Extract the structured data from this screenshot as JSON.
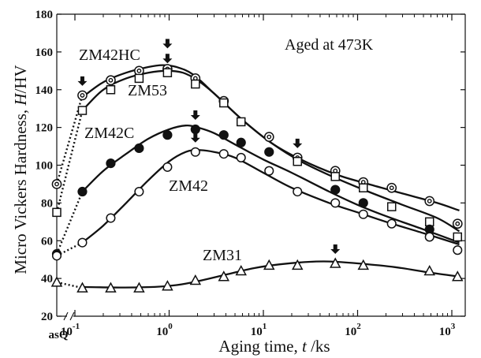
{
  "chart_data": {
    "type": "scatter",
    "title": "",
    "annotation": "Aged at 473K",
    "xlabel": "Aging time, t /ks",
    "ylabel": "Micro Vickers Hardness, H/HV",
    "xscale": "log",
    "xlim": [
      0.06,
      1500
    ],
    "ylim": [
      20,
      180
    ],
    "grid": false,
    "x_ticks": [
      {
        "value": 0.1,
        "label": "10",
        "exp": "-1"
      },
      {
        "value": 1,
        "label": "10",
        "exp": "0"
      },
      {
        "value": 10,
        "label": "10",
        "exp": "1"
      },
      {
        "value": 100,
        "label": "10",
        "exp": "2"
      },
      {
        "value": 1000,
        "label": "10",
        "exp": "3"
      }
    ],
    "x_special_label": "asQ",
    "y_ticks": [
      "20",
      "40",
      "60",
      "80",
      "100",
      "120",
      "140",
      "160",
      "180"
    ],
    "y_tick_values": [
      20,
      40,
      60,
      80,
      100,
      120,
      140,
      160,
      180
    ],
    "series": [
      {
        "name": "ZM42HC",
        "marker": "double-circle",
        "asQ": 90,
        "x": [
          0.12,
          0.24,
          0.48,
          0.96,
          1.9,
          3.8,
          11.5,
          23,
          58,
          115,
          230,
          580,
          1150
        ],
        "y": [
          137,
          145,
          150,
          151,
          146,
          134,
          115,
          104,
          97,
          91,
          88,
          81,
          69
        ],
        "curve_x": [
          0.12,
          0.2,
          0.35,
          0.6,
          0.85,
          1.2,
          1.8,
          3,
          6,
          12,
          25,
          60,
          130,
          300,
          700,
          1200
        ],
        "curve_y": [
          136,
          144,
          149,
          152,
          153,
          152,
          148,
          138,
          124,
          112,
          103,
          95,
          90,
          85,
          80,
          76
        ]
      },
      {
        "name": "ZM53",
        "marker": "open-square",
        "asQ": 75,
        "x": [
          0.12,
          0.24,
          0.48,
          0.96,
          1.9,
          3.8,
          5.8,
          23,
          58,
          115,
          230,
          580,
          1150
        ],
        "y": [
          129,
          140,
          146,
          149,
          143,
          133,
          123,
          102,
          94,
          88,
          78,
          70,
          62
        ],
        "curve_x": [
          0.12,
          0.2,
          0.35,
          0.6,
          0.95,
          1.4,
          2,
          3,
          6,
          12,
          25,
          60,
          130,
          300,
          700,
          1200
        ],
        "curve_y": [
          129,
          140,
          146,
          149,
          150,
          149,
          145,
          138,
          124,
          112,
          102,
          93,
          86,
          79,
          72,
          65
        ]
      },
      {
        "name": "ZM42C",
        "marker": "filled-circle",
        "asQ": 53,
        "x": [
          0.12,
          0.24,
          0.48,
          0.96,
          1.9,
          3.8,
          5.8,
          11.5,
          58,
          115,
          580
        ],
        "y": [
          86,
          101,
          109,
          116,
          119,
          116,
          112,
          107,
          87,
          80,
          66
        ],
        "curve_x": [
          0.12,
          0.2,
          0.35,
          0.6,
          1,
          1.5,
          2,
          3,
          5,
          10,
          20,
          50,
          100,
          200,
          500,
          1200
        ],
        "curve_y": [
          86,
          97,
          106,
          114,
          119,
          121,
          120,
          117,
          111,
          103,
          96,
          86,
          79,
          73,
          66,
          59
        ]
      },
      {
        "name": "ZM42",
        "marker": "open-circle",
        "asQ": 52,
        "x": [
          0.12,
          0.24,
          0.48,
          0.96,
          1.9,
          3.8,
          5.8,
          11.5,
          23,
          58,
          115,
          230,
          580,
          1150
        ],
        "y": [
          59,
          72,
          86,
          99,
          107,
          106,
          104,
          97,
          86,
          80,
          74,
          69,
          62,
          55
        ],
        "curve_x": [
          0.12,
          0.2,
          0.35,
          0.6,
          1,
          1.5,
          2,
          3,
          5,
          10,
          20,
          50,
          100,
          200,
          500,
          1200
        ],
        "curve_y": [
          59,
          68,
          80,
          92,
          102,
          107,
          108,
          107,
          104,
          96,
          88,
          80,
          75,
          70,
          64,
          58
        ]
      },
      {
        "name": "ZM31",
        "marker": "open-triangle",
        "asQ": 38,
        "x": [
          0.12,
          0.24,
          0.48,
          0.96,
          1.9,
          3.8,
          5.8,
          11.5,
          23,
          58,
          115,
          580,
          1150
        ],
        "y": [
          35,
          35,
          35,
          36,
          39,
          41,
          44,
          47,
          47,
          48,
          47,
          44,
          41
        ],
        "curve_x": [
          0.12,
          0.3,
          0.7,
          1.2,
          2,
          4,
          8,
          15,
          30,
          50,
          100,
          250,
          600,
          1200
        ],
        "curve_y": [
          35.5,
          35.2,
          35.5,
          36.5,
          38.5,
          42,
          45.5,
          47.5,
          48.8,
          49,
          48,
          46,
          43,
          41
        ]
      }
    ],
    "series_labels": [
      {
        "series": "ZM42HC",
        "text": "ZM42HC"
      },
      {
        "series": "ZM53",
        "text": "ZM53"
      },
      {
        "series": "ZM42C",
        "text": "ZM42C"
      },
      {
        "series": "ZM42",
        "text": "ZM42"
      },
      {
        "series": "ZM31",
        "text": "ZM31"
      }
    ],
    "peak_arrows": [
      {
        "series": "ZM42HC",
        "x": 0.12,
        "y": 137
      },
      {
        "series": "ZM42HC",
        "x": 0.96,
        "y": 151
      },
      {
        "series": "ZM53",
        "x": 0.96,
        "y": 149
      },
      {
        "series": "ZM42C",
        "x": 1.9,
        "y": 119
      },
      {
        "series": "ZM42",
        "x": 1.9,
        "y": 107
      },
      {
        "series": "ZM42HC",
        "x": 23,
        "y": 104
      },
      {
        "series": "ZM31",
        "x": 58,
        "y": 48
      }
    ]
  }
}
